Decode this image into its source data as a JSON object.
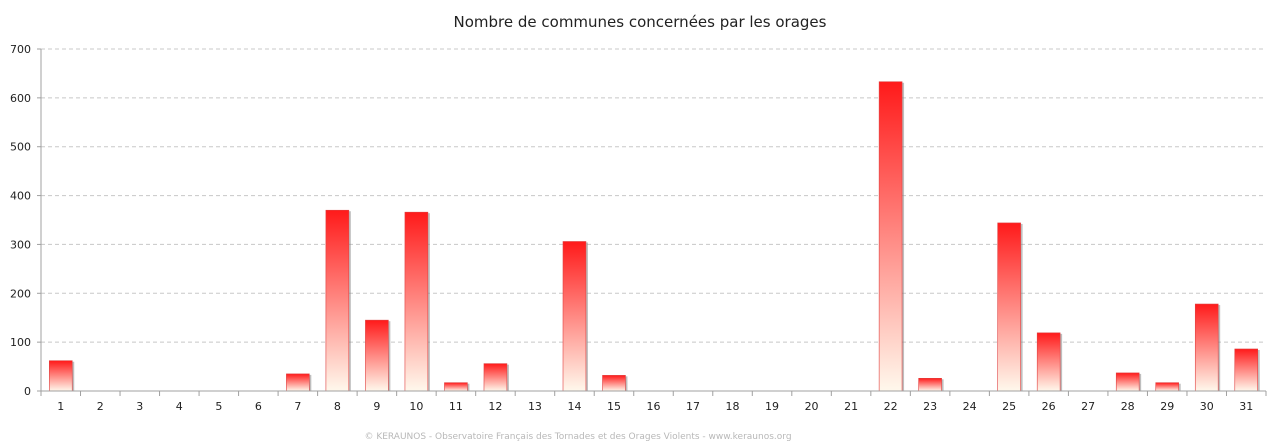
{
  "chart_data": {
    "type": "bar",
    "title": "Nombre de communes concernées par les orages",
    "xlabel": "",
    "ylabel": "",
    "categories": [
      "1",
      "2",
      "3",
      "4",
      "5",
      "6",
      "7",
      "8",
      "9",
      "10",
      "11",
      "12",
      "13",
      "14",
      "15",
      "16",
      "17",
      "18",
      "19",
      "20",
      "21",
      "22",
      "23",
      "24",
      "25",
      "26",
      "27",
      "28",
      "29",
      "30",
      "31"
    ],
    "values": [
      62,
      0,
      0,
      0,
      0,
      0,
      35,
      370,
      145,
      366,
      17,
      56,
      0,
      306,
      32,
      0,
      0,
      0,
      0,
      0,
      0,
      633,
      26,
      0,
      344,
      119,
      0,
      37,
      17,
      178,
      86
    ],
    "ylim": [
      0,
      700
    ],
    "yticks": [
      0,
      100,
      200,
      300,
      400,
      500,
      600,
      700
    ],
    "grid": true,
    "legend": "none",
    "colors": {
      "bar_top": "#ff1a1a",
      "bar_bottom": "#fff8ec",
      "grid": "#c8c8c8",
      "axis": "#a0a0a0"
    }
  },
  "footer": {
    "credit": "© KERAUNOS - Observatoire Français des Tornades et des Orages Violents - www.keraunos.org"
  }
}
